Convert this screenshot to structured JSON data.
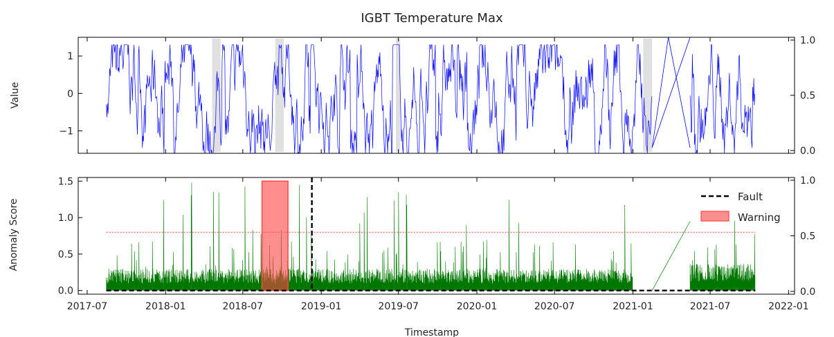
{
  "chart_data": [
    {
      "type": "line",
      "title": "IGBT Temperature Max",
      "ylabel": "Value",
      "xlabel": "",
      "ylim": [
        -1.6,
        1.5
      ],
      "y_ticks": [
        -1,
        0,
        1
      ],
      "y_tick_labels": [
        "−1",
        "0",
        "1"
      ],
      "right_axis": {
        "ylim": [
          0,
          1
        ],
        "ticks": [
          0.0,
          0.5,
          1.0
        ],
        "tick_labels": [
          "0.0",
          "0.5",
          "1.0"
        ]
      },
      "series": [
        {
          "color": "#0000ff",
          "segments": [
            {
              "start": "2017-08-15",
              "end": "2021-02-15",
              "low": -1.6,
              "high": 1.3
            },
            {
              "start": "2021-05-15",
              "end": "2021-10-15",
              "low": -1.6,
              "high": 1.3
            }
          ],
          "gap_line": {
            "from": [
              "2021-02-15",
              -1.45
            ],
            "via": [
              "2021-03-25",
              1.5
            ],
            "to": [
              "2021-05-15",
              -1.45
            ]
          }
        }
      ],
      "grey_spans": [
        [
          "2018-04-20",
          "2018-05-10"
        ],
        [
          "2018-09-15",
          "2018-10-05"
        ],
        [
          "2019-06-25",
          "2019-07-05"
        ],
        [
          "2021-01-25",
          "2021-02-15"
        ]
      ]
    },
    {
      "type": "line",
      "title": "",
      "ylabel": "Anomaly Score",
      "xlabel": "Timestamp",
      "ylim": [
        -0.05,
        1.55
      ],
      "y_ticks": [
        0.0,
        0.5,
        1.0,
        1.5
      ],
      "y_tick_labels": [
        "0.0",
        "0.5",
        "1.0",
        "1.5"
      ],
      "right_axis": {
        "ylim": [
          0,
          1
        ],
        "ticks": [
          0.0,
          0.5,
          1.0
        ],
        "tick_labels": [
          "0.0",
          "0.5",
          "1.0"
        ]
      },
      "x_tick_labels": [
        "2017-07",
        "2018-01",
        "2018-07",
        "2019-01",
        "2019-07",
        "2020-01",
        "2020-07",
        "2021-01",
        "2021-07",
        "2022-01"
      ],
      "xlim": [
        "2017-06-10",
        "2022-01-15"
      ],
      "series": [
        {
          "color": "#007700",
          "segments": [
            {
              "start": "2017-08-15",
              "end": "2021-01-01",
              "base": 0.2,
              "spike_max": 1.5
            },
            {
              "start": "2021-05-15",
              "end": "2021-10-15",
              "base": 0.25,
              "spike_max": 1.1
            }
          ]
        }
      ],
      "threshold": {
        "value": 0.8,
        "color": "#ff4444"
      },
      "fault_lines": [
        {
          "date": "2018-12-10"
        }
      ],
      "warning_region": {
        "start": "2018-08-15",
        "end": "2018-10-15",
        "ymin": 0.0,
        "ymax": 1.5,
        "color": "#ff4444"
      },
      "fault_baseline": {
        "value": 0.0,
        "start": "2017-08-15",
        "end": "2021-10-15"
      },
      "legend": {
        "placement": "upper-right",
        "entries": [
          "Fault",
          "Warning"
        ]
      }
    }
  ]
}
